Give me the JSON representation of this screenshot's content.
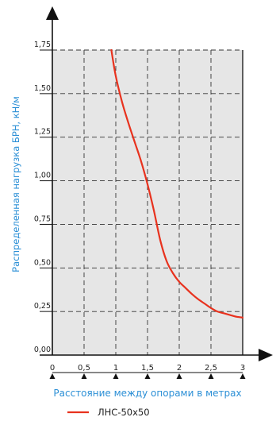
{
  "chart_data": {
    "type": "line",
    "xlabel": "Расстояние между опорами в метрах",
    "ylabel": "Распределенная нагрузка БРН, кН/м",
    "xlim": [
      0,
      3
    ],
    "ylim": [
      0,
      1.75
    ],
    "x_ticks": [
      0,
      0.5,
      1,
      1.5,
      2,
      2.5,
      3
    ],
    "x_tick_labels": [
      "0",
      "0,5",
      "1",
      "1,5",
      "2",
      "2,5",
      "3"
    ],
    "y_ticks": [
      0,
      0.25,
      0.5,
      0.75,
      1.0,
      1.25,
      1.5,
      1.75
    ],
    "y_tick_labels": [
      "0,00",
      "0,25",
      "0,50",
      "0,75",
      "1,00",
      "1,25",
      "1,50",
      "1,75"
    ],
    "grid": true,
    "legend_position": "bottom",
    "series": [
      {
        "name": "ЛНС-50х50",
        "color": "#e8321e",
        "x": [
          0.93,
          1.0,
          1.1,
          1.2,
          1.3,
          1.4,
          1.5,
          1.6,
          1.7,
          1.8,
          1.9,
          2.0,
          2.1,
          2.2,
          2.3,
          2.4,
          2.5,
          2.6,
          2.7,
          2.8,
          2.9,
          3.0
        ],
        "y": [
          1.75,
          1.6,
          1.45,
          1.33,
          1.22,
          1.11,
          0.98,
          0.83,
          0.66,
          0.54,
          0.47,
          0.42,
          0.385,
          0.35,
          0.32,
          0.295,
          0.27,
          0.25,
          0.24,
          0.23,
          0.22,
          0.215
        ]
      }
    ],
    "colors": {
      "plot_background": "#e6e6e6",
      "axis_title": "#2b8fd6",
      "grid": "#333333"
    }
  }
}
